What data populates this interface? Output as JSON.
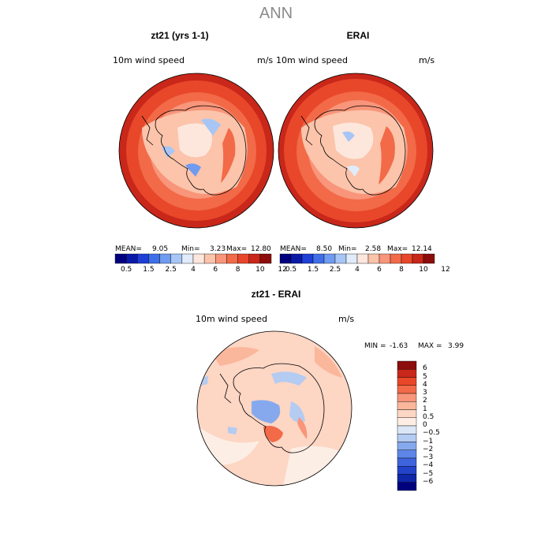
{
  "title": "ANN",
  "panels": [
    {
      "title": "zt21 (yrs 1-1)",
      "variable": "10m wind speed",
      "units": "m/s",
      "stats": {
        "mean_label": "MEAN=",
        "mean": "9.05",
        "min_label": "Min=",
        "min": "3.23",
        "max_label": "Max=",
        "max": "12.80"
      }
    },
    {
      "title": "ERAI",
      "variable": "10m wind speed",
      "units": "m/s",
      "stats": {
        "mean_label": "MEAN=",
        "mean": "8.50",
        "min_label": "Min=",
        "min": "2.58",
        "max_label": "Max=",
        "max": "12.14"
      }
    }
  ],
  "colorbar": {
    "colors": [
      "#00007f",
      "#0a1aa8",
      "#1f3fd6",
      "#3f6ee8",
      "#6f9bf0",
      "#a8c6f5",
      "#e0ecfa",
      "#fde7dc",
      "#fbc4ab",
      "#f8957a",
      "#f26a48",
      "#e8472a",
      "#c8271a",
      "#8c0d0a"
    ],
    "ticks": [
      "0.5",
      "1.5",
      "2.5",
      "4",
      "6",
      "8",
      "10",
      "12"
    ]
  },
  "diff": {
    "title": "zt21 - ERAI",
    "variable": "10m wind speed",
    "units": "m/s",
    "min_label": "MIN =",
    "min": "-1.63",
    "max_label": "MAX =",
    "max": "3.99",
    "colors": [
      "#8c0d0a",
      "#c8271a",
      "#e8472a",
      "#f26a48",
      "#f8957a",
      "#fbb79b",
      "#fdd6c4",
      "#fdeee5",
      "#dbe6f7",
      "#b4cbf2",
      "#86a9ee",
      "#5d86e8",
      "#3e63dc",
      "#2344c8",
      "#0f27a8",
      "#00007f"
    ],
    "ticks": [
      "6",
      "5",
      "4",
      "3",
      "2",
      "1",
      "0.5",
      "0",
      "−0.5",
      "−1",
      "−2",
      "−3",
      "−4",
      "−5",
      "−6"
    ]
  }
}
